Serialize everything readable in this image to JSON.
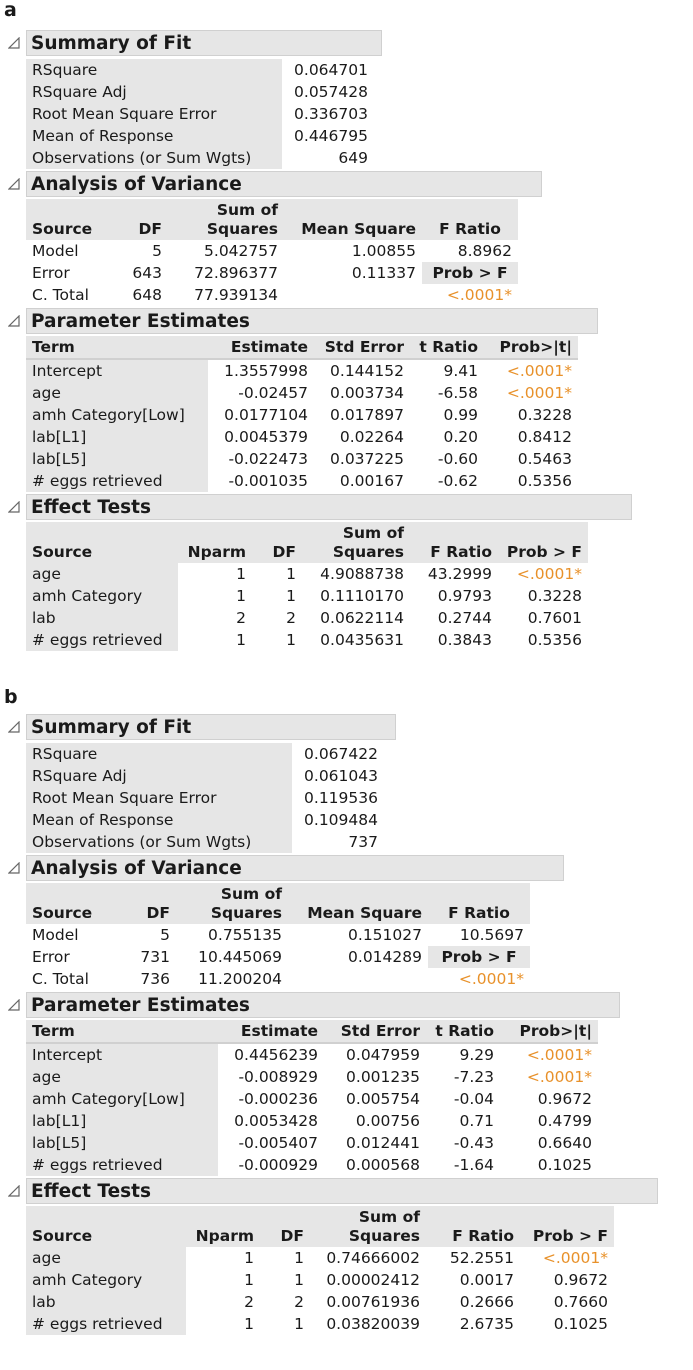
{
  "panels": [
    {
      "letter": "a",
      "summary": {
        "title": "Summary of Fit",
        "rows": [
          {
            "label": "RSquare",
            "value": "0.064701"
          },
          {
            "label": "RSquare Adj",
            "value": "0.057428"
          },
          {
            "label": "Root Mean Square Error",
            "value": "0.336703"
          },
          {
            "label": "Mean of Response",
            "value": "0.446795"
          },
          {
            "label": "Observations (or Sum Wgts)",
            "value": "649"
          }
        ]
      },
      "anova": {
        "title": "Analysis of Variance",
        "headers": {
          "source": "Source",
          "df": "DF",
          "ss_top": "Sum of",
          "ss_bottom": "Squares",
          "ms": "Mean Square",
          "f": "F Ratio"
        },
        "rows": [
          {
            "source": "Model",
            "df": "5",
            "ss": "5.042757",
            "ms": "1.00855",
            "f": "8.8962"
          },
          {
            "source": "Error",
            "df": "643",
            "ss": "72.896377",
            "ms": "0.11337",
            "f": "Prob > F"
          },
          {
            "source": "C. Total",
            "df": "648",
            "ss": "77.939134",
            "ms": "",
            "f": "<.0001*"
          }
        ]
      },
      "params": {
        "title": "Parameter Estimates",
        "headers": {
          "term": "Term",
          "est": "Estimate",
          "se": "Std Error",
          "t": "t Ratio",
          "p": "Prob>|t|"
        },
        "rows": [
          {
            "term": "Intercept",
            "est": "1.3557998",
            "se": "0.144152",
            "t": "9.41",
            "p": "<.0001*"
          },
          {
            "term": "age",
            "est": "-0.02457",
            "se": "0.003734",
            "t": "-6.58",
            "p": "<.0001*"
          },
          {
            "term": "amh Category[Low]",
            "est": "0.0177104",
            "se": "0.017897",
            "t": "0.99",
            "p": "0.3228"
          },
          {
            "term": "lab[L1]",
            "est": "0.0045379",
            "se": "0.02264",
            "t": "0.20",
            "p": "0.8412"
          },
          {
            "term": "lab[L5]",
            "est": "-0.022473",
            "se": "0.037225",
            "t": "-0.60",
            "p": "0.5463"
          },
          {
            "term": "# eggs retrieved",
            "est": "-0.001035",
            "se": "0.00167",
            "t": "-0.62",
            "p": "0.5356"
          }
        ]
      },
      "effects": {
        "title": "Effect Tests",
        "headers": {
          "source": "Source",
          "nparm": "Nparm",
          "df": "DF",
          "ss_top": "Sum of",
          "ss_bottom": "Squares",
          "f": "F Ratio",
          "p": "Prob > F"
        },
        "rows": [
          {
            "source": "age",
            "nparm": "1",
            "df": "1",
            "ss": "4.9088738",
            "f": "43.2999",
            "p": "<.0001*"
          },
          {
            "source": "amh Category",
            "nparm": "1",
            "df": "1",
            "ss": "0.1110170",
            "f": "0.9793",
            "p": "0.3228"
          },
          {
            "source": "lab",
            "nparm": "2",
            "df": "2",
            "ss": "0.0622114",
            "f": "0.2744",
            "p": "0.7601"
          },
          {
            "source": "# eggs retrieved",
            "nparm": "1",
            "df": "1",
            "ss": "0.0435631",
            "f": "0.3843",
            "p": "0.5356"
          }
        ]
      }
    },
    {
      "letter": "b",
      "summary": {
        "title": "Summary of Fit",
        "rows": [
          {
            "label": "RSquare",
            "value": "0.067422"
          },
          {
            "label": "RSquare Adj",
            "value": "0.061043"
          },
          {
            "label": "Root Mean Square Error",
            "value": "0.119536"
          },
          {
            "label": "Mean of Response",
            "value": "0.109484"
          },
          {
            "label": "Observations (or Sum Wgts)",
            "value": "737"
          }
        ]
      },
      "anova": {
        "title": "Analysis of Variance",
        "headers": {
          "source": "Source",
          "df": "DF",
          "ss_top": "Sum of",
          "ss_bottom": "Squares",
          "ms": "Mean Square",
          "f": "F Ratio"
        },
        "rows": [
          {
            "source": "Model",
            "df": "5",
            "ss": "0.755135",
            "ms": "0.151027",
            "f": "10.5697"
          },
          {
            "source": "Error",
            "df": "731",
            "ss": "10.445069",
            "ms": "0.014289",
            "f": "Prob > F"
          },
          {
            "source": "C. Total",
            "df": "736",
            "ss": "11.200204",
            "ms": "",
            "f": "<.0001*"
          }
        ]
      },
      "params": {
        "title": "Parameter Estimates",
        "headers": {
          "term": "Term",
          "est": "Estimate",
          "se": "Std Error",
          "t": "t Ratio",
          "p": "Prob>|t|"
        },
        "rows": [
          {
            "term": "Intercept",
            "est": "0.4456239",
            "se": "0.047959",
            "t": "9.29",
            "p": "<.0001*"
          },
          {
            "term": "age",
            "est": "-0.008929",
            "se": "0.001235",
            "t": "-7.23",
            "p": "<.0001*"
          },
          {
            "term": "amh Category[Low]",
            "est": "-0.000236",
            "se": "0.005754",
            "t": "-0.04",
            "p": "0.9672"
          },
          {
            "term": "lab[L1]",
            "est": "0.0053428",
            "se": "0.00756",
            "t": "0.71",
            "p": "0.4799"
          },
          {
            "term": "lab[L5]",
            "est": "-0.005407",
            "se": "0.012441",
            "t": "-0.43",
            "p": "0.6640"
          },
          {
            "term": "# eggs retrieved",
            "est": "-0.000929",
            "se": "0.000568",
            "t": "-1.64",
            "p": "0.1025"
          }
        ]
      },
      "effects": {
        "title": "Effect Tests",
        "headers": {
          "source": "Source",
          "nparm": "Nparm",
          "df": "DF",
          "ss_top": "Sum of",
          "ss_bottom": "Squares",
          "f": "F Ratio",
          "p": "Prob > F"
        },
        "rows": [
          {
            "source": "age",
            "nparm": "1",
            "df": "1",
            "ss": "0.74666002",
            "f": "52.2551",
            "p": "<.0001*"
          },
          {
            "source": "amh Category",
            "nparm": "1",
            "df": "1",
            "ss": "0.00002412",
            "f": "0.0017",
            "p": "0.9672"
          },
          {
            "source": "lab",
            "nparm": "2",
            "df": "2",
            "ss": "0.00761936",
            "f": "0.2666",
            "p": "0.7660"
          },
          {
            "source": "# eggs retrieved",
            "nparm": "1",
            "df": "1",
            "ss": "0.03820039",
            "f": "2.6735",
            "p": "0.1025"
          }
        ]
      }
    }
  ],
  "colors": {
    "significant": "#e8912a",
    "header_bg": "#e6e6e6"
  }
}
